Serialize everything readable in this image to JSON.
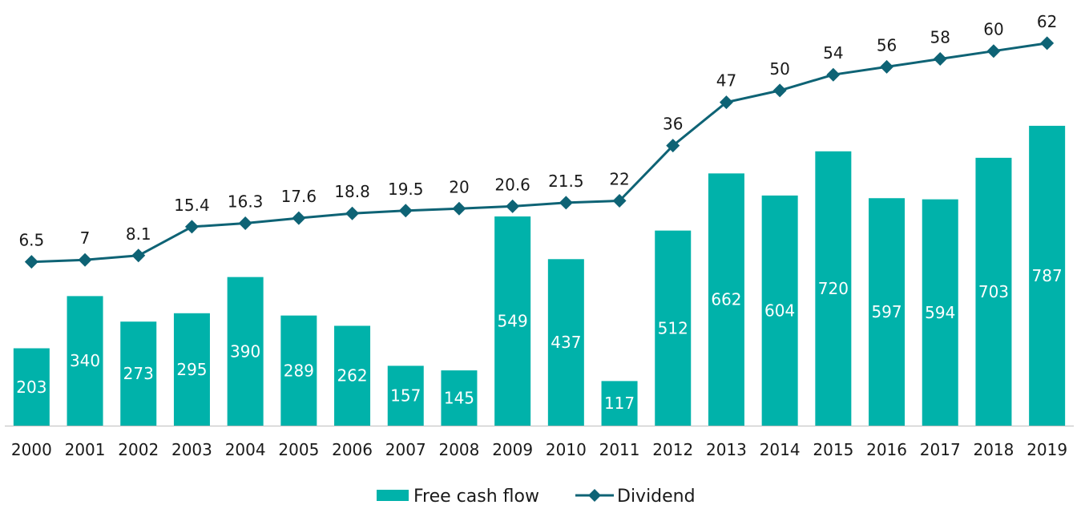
{
  "chart_data": {
    "type": "bar",
    "categories": [
      "2000",
      "2001",
      "2002",
      "2003",
      "2004",
      "2005",
      "2006",
      "2007",
      "2008",
      "2009",
      "2010",
      "2011",
      "2012",
      "2013",
      "2014",
      "2015",
      "2016",
      "2017",
      "2018",
      "2019"
    ],
    "series": [
      {
        "name": "Free cash flow",
        "type": "bar",
        "color": "#00B2AA",
        "values": [
          203,
          340,
          273,
          295,
          390,
          289,
          262,
          157,
          145,
          549,
          437,
          117,
          512,
          662,
          604,
          720,
          597,
          594,
          703,
          787
        ],
        "labels": [
          "203",
          "340",
          "273",
          "295",
          "390",
          "289",
          "262",
          "157",
          "145",
          "549",
          "437",
          "117",
          "512",
          "662",
          "604",
          "720",
          "597",
          "594",
          "703",
          "787"
        ]
      },
      {
        "name": "Dividend",
        "type": "line",
        "color": "#0E6375",
        "marker": "diamond",
        "values": [
          6.5,
          7,
          8.1,
          15.4,
          16.3,
          17.6,
          18.8,
          19.5,
          20,
          20.6,
          21.5,
          22,
          36,
          47,
          50,
          54,
          56,
          58,
          60,
          62
        ],
        "labels": [
          "6.5",
          "7",
          "8.1",
          "15.4",
          "16.3",
          "17.6",
          "18.8",
          "19.5",
          "20",
          "20.6",
          "21.5",
          "22",
          "36",
          "47",
          "50",
          "54",
          "56",
          "58",
          "60",
          "62"
        ]
      }
    ],
    "legend": {
      "position": "bottom",
      "entries": [
        "Free cash flow",
        "Dividend"
      ]
    },
    "grid": false,
    "y_axis_visible": false
  }
}
